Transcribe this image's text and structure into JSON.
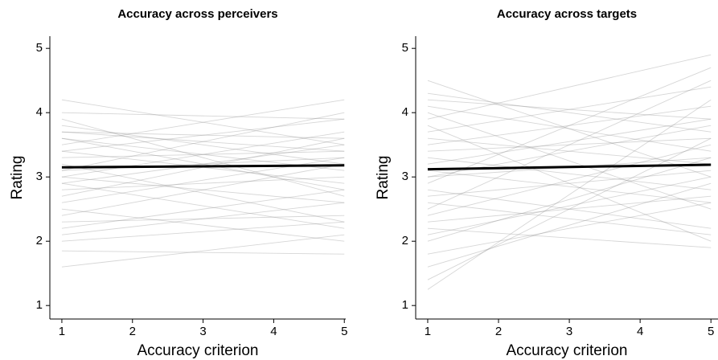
{
  "chart_data": [
    {
      "type": "line",
      "title": "Accuracy across perceivers",
      "x_label": "Accuracy criterion",
      "y_label": "Rating",
      "x": [
        1,
        5
      ],
      "xlim": [
        0.83,
        5.02
      ],
      "ylim": [
        0.79,
        5.19
      ],
      "xticks": [
        1,
        2,
        3,
        4,
        5
      ],
      "yticks": [
        1,
        2,
        3,
        4,
        5
      ],
      "series": [
        {
          "color": "#8a8a8a",
          "values": [
            3.1,
            3.3
          ]
        },
        {
          "color": "#8a8a8a",
          "values": [
            2.9,
            3.5
          ]
        },
        {
          "color": "#8a8a8a",
          "values": [
            3.6,
            2.8
          ]
        },
        {
          "color": "#8a8a8a",
          "values": [
            4.2,
            3.5
          ]
        },
        {
          "color": "#8a8a8a",
          "values": [
            4.0,
            3.9
          ]
        },
        {
          "color": "#8a8a8a",
          "values": [
            1.6,
            2.1
          ]
        },
        {
          "color": "#8a8a8a",
          "values": [
            1.85,
            1.8
          ]
        },
        {
          "color": "#8a8a8a",
          "values": [
            2.2,
            2.8
          ]
        },
        {
          "color": "#8a8a8a",
          "values": [
            2.5,
            2.0
          ]
        },
        {
          "color": "#8a8a8a",
          "values": [
            3.3,
            3.4
          ]
        },
        {
          "color": "#8a8a8a",
          "values": [
            3.7,
            3.6
          ]
        },
        {
          "color": "#8a8a8a",
          "values": [
            2.8,
            3.0
          ]
        },
        {
          "color": "#8a8a8a",
          "values": [
            3.0,
            2.6
          ]
        },
        {
          "color": "#8a8a8a",
          "values": [
            3.5,
            4.2
          ]
        },
        {
          "color": "#8a8a8a",
          "values": [
            2.7,
            3.6
          ]
        },
        {
          "color": "#8a8a8a",
          "values": [
            3.9,
            2.7
          ]
        },
        {
          "color": "#8a8a8a",
          "values": [
            2.4,
            3.2
          ]
        },
        {
          "color": "#8a8a8a",
          "values": [
            3.2,
            2.3
          ]
        },
        {
          "color": "#8a8a8a",
          "values": [
            2.1,
            2.6
          ]
        },
        {
          "color": "#8a8a8a",
          "values": [
            3.4,
            3.9
          ]
        },
        {
          "color": "#8a8a8a",
          "values": [
            2.6,
            3.3
          ]
        },
        {
          "color": "#8a8a8a",
          "values": [
            3.8,
            3.2
          ]
        },
        {
          "color": "#8a8a8a",
          "values": [
            3.0,
            3.7
          ]
        },
        {
          "color": "#8a8a8a",
          "values": [
            2.3,
            2.4
          ]
        },
        {
          "color": "#8a8a8a",
          "values": [
            3.6,
            3.1
          ]
        },
        {
          "color": "#8a8a8a",
          "values": [
            2.9,
            2.2
          ]
        },
        {
          "color": "#8a8a8a",
          "values": [
            3.1,
            4.0
          ]
        },
        {
          "color": "#8a8a8a",
          "values": [
            3.4,
            2.9
          ]
        },
        {
          "color": "#8a8a8a",
          "values": [
            2.0,
            2.3
          ]
        },
        {
          "color": "#8a8a8a",
          "values": [
            3.7,
            3.4
          ]
        },
        {
          "color": "#000000",
          "values": [
            3.15,
            3.18
          ]
        }
      ]
    },
    {
      "type": "line",
      "title": "Accuracy across targets",
      "x_label": "Accuracy criterion",
      "y_label": "Rating",
      "x": [
        1,
        5
      ],
      "xlim": [
        0.83,
        5.1
      ],
      "ylim": [
        0.79,
        5.19
      ],
      "xticks": [
        1,
        2,
        3,
        4,
        5
      ],
      "yticks": [
        1,
        2,
        3,
        4,
        5
      ],
      "series": [
        {
          "color": "#8a8a8a",
          "values": [
            4.5,
            3.0
          ]
        },
        {
          "color": "#8a8a8a",
          "values": [
            1.25,
            4.2
          ]
        },
        {
          "color": "#8a8a8a",
          "values": [
            4.3,
            3.7
          ]
        },
        {
          "color": "#8a8a8a",
          "values": [
            1.4,
            3.6
          ]
        },
        {
          "color": "#8a8a8a",
          "values": [
            3.9,
            4.9
          ]
        },
        {
          "color": "#8a8a8a",
          "values": [
            2.0,
            3.3
          ]
        },
        {
          "color": "#8a8a8a",
          "values": [
            1.8,
            2.6
          ]
        },
        {
          "color": "#8a8a8a",
          "values": [
            3.2,
            3.9
          ]
        },
        {
          "color": "#8a8a8a",
          "values": [
            2.8,
            2.2
          ]
        },
        {
          "color": "#8a8a8a",
          "values": [
            4.0,
            2.5
          ]
        },
        {
          "color": "#8a8a8a",
          "values": [
            2.5,
            4.5
          ]
        },
        {
          "color": "#8a8a8a",
          "values": [
            3.6,
            3.2
          ]
        },
        {
          "color": "#8a8a8a",
          "values": [
            3.0,
            3.8
          ]
        },
        {
          "color": "#8a8a8a",
          "values": [
            2.2,
            1.9
          ]
        },
        {
          "color": "#8a8a8a",
          "values": [
            3.5,
            4.1
          ]
        },
        {
          "color": "#8a8a8a",
          "values": [
            2.7,
            3.1
          ]
        },
        {
          "color": "#8a8a8a",
          "values": [
            4.1,
            3.4
          ]
        },
        {
          "color": "#8a8a8a",
          "values": [
            1.6,
            2.9
          ]
        },
        {
          "color": "#8a8a8a",
          "values": [
            3.3,
            2.8
          ]
        },
        {
          "color": "#8a8a8a",
          "values": [
            2.4,
            3.5
          ]
        },
        {
          "color": "#8a8a8a",
          "values": [
            3.8,
            2.0
          ]
        },
        {
          "color": "#8a8a8a",
          "values": [
            2.9,
            4.7
          ]
        },
        {
          "color": "#8a8a8a",
          "values": [
            3.1,
            2.6
          ]
        },
        {
          "color": "#8a8a8a",
          "values": [
            4.2,
            3.9
          ]
        },
        {
          "color": "#8a8a8a",
          "values": [
            2.6,
            2.1
          ]
        },
        {
          "color": "#8a8a8a",
          "values": [
            3.4,
            3.6
          ]
        },
        {
          "color": "#8a8a8a",
          "values": [
            2.1,
            3.0
          ]
        },
        {
          "color": "#8a8a8a",
          "values": [
            3.7,
            4.4
          ]
        },
        {
          "color": "#8a8a8a",
          "values": [
            2.3,
            2.7
          ]
        },
        {
          "color": "#8a8a8a",
          "values": [
            3.0,
            3.3
          ]
        },
        {
          "color": "#000000",
          "values": [
            3.12,
            3.19
          ]
        }
      ]
    }
  ]
}
